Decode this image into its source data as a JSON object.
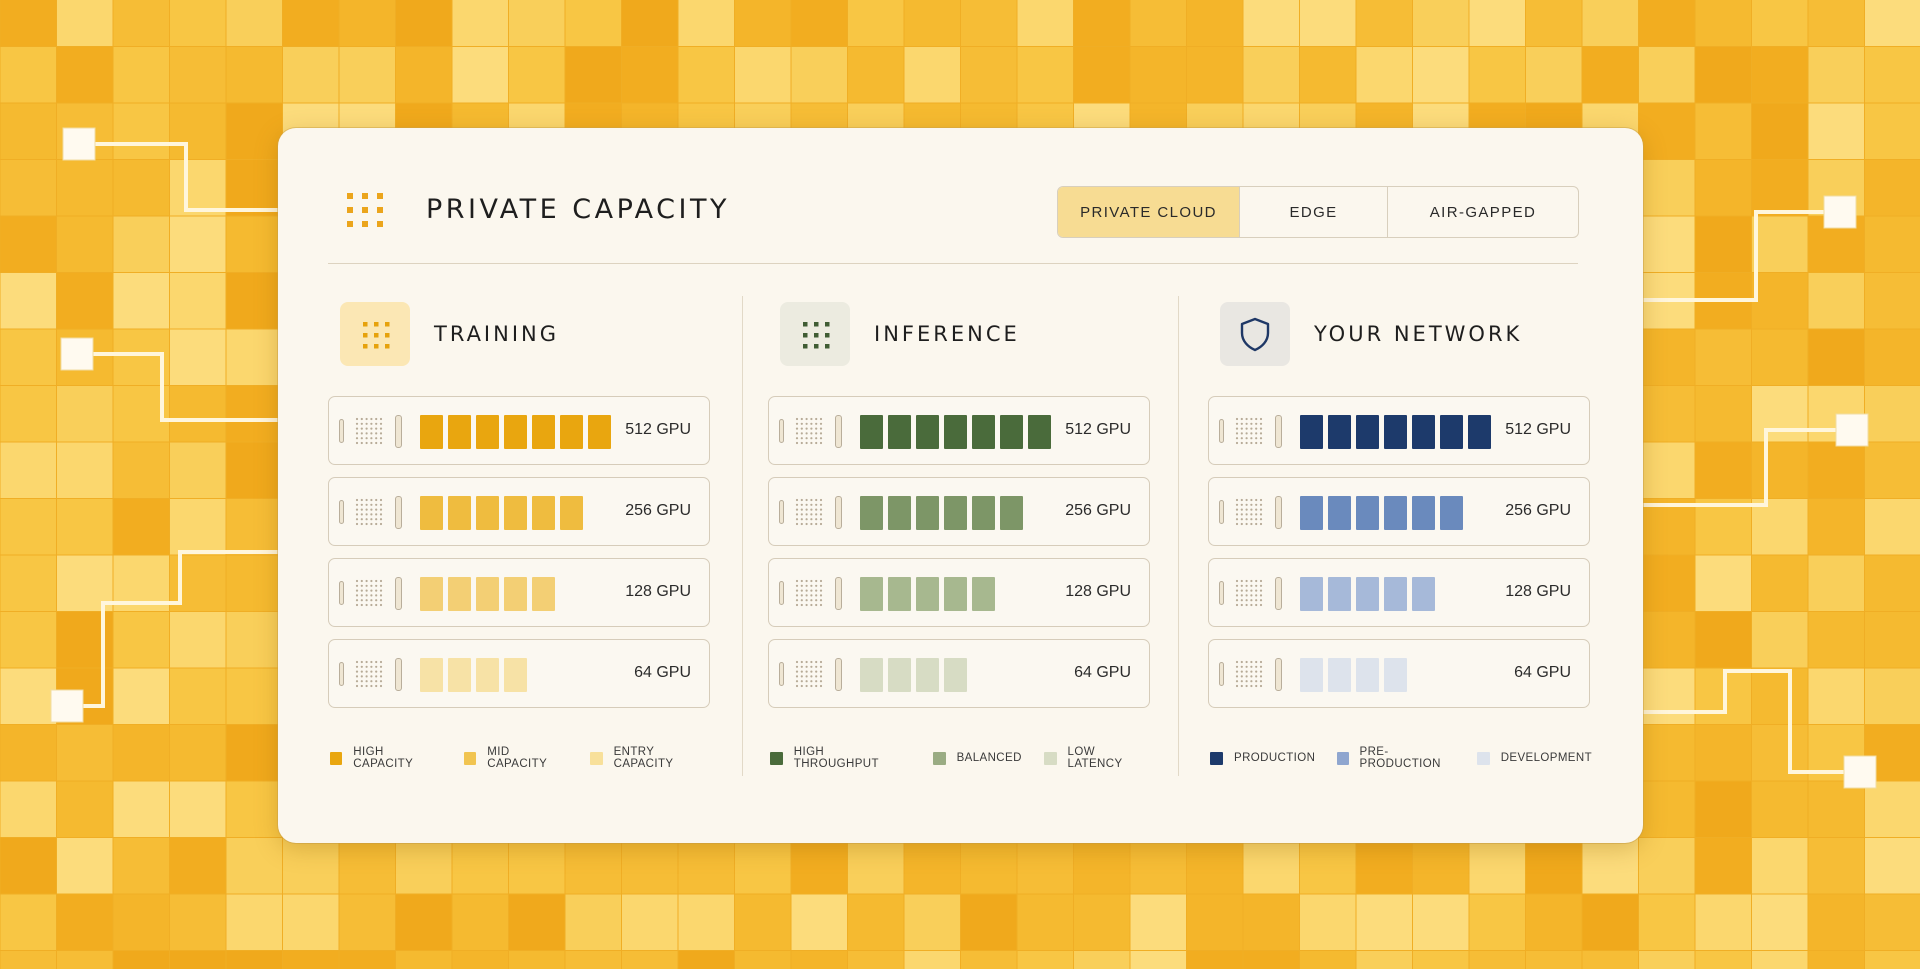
{
  "header": {
    "title": "PRIVATE CAPACITY",
    "logo_icon": "dot-grid-icon",
    "tabs": [
      {
        "label": "PRIVATE CLOUD",
        "active": true
      },
      {
        "label": "EDGE",
        "active": false
      },
      {
        "label": "AIR-GAPPED",
        "active": false
      }
    ]
  },
  "columns": [
    {
      "title": "TRAINING",
      "icon": "dot-grid-icon",
      "icon_bg": "#fbe7b4",
      "icon_color": "#e6a20e",
      "tiers": [
        {
          "label": "512 GPU",
          "units": 7,
          "color": "#e9a60f"
        },
        {
          "label": "256 GPU",
          "units": 6,
          "color": "#efbc3f"
        },
        {
          "label": "128 GPU",
          "units": 5,
          "color": "#f3cf74"
        },
        {
          "label": "64 GPU",
          "units": 4,
          "color": "#f7e2a6"
        }
      ],
      "legend": [
        {
          "label": "HIGH CAPACITY",
          "color": "#e9a60f"
        },
        {
          "label": "MID CAPACITY",
          "color": "#f1c450"
        },
        {
          "label": "ENTRY CAPACITY",
          "color": "#f8e09a"
        }
      ]
    },
    {
      "title": "INFERENCE",
      "icon": "dot-grid-icon",
      "icon_bg": "#ecebe0",
      "icon_color": "#3f5c33",
      "tiers": [
        {
          "label": "512 GPU",
          "units": 7,
          "color": "#4a6b3b"
        },
        {
          "label": "256 GPU",
          "units": 6,
          "color": "#7d9667"
        },
        {
          "label": "128 GPU",
          "units": 5,
          "color": "#a7b88f"
        },
        {
          "label": "64 GPU",
          "units": 4,
          "color": "#d7dcc4"
        }
      ],
      "legend": [
        {
          "label": "HIGH THROUGHPUT",
          "color": "#4a6b3b"
        },
        {
          "label": "BALANCED",
          "color": "#9aac83"
        },
        {
          "label": "LOW LATENCY",
          "color": "#d7dcc4"
        }
      ]
    },
    {
      "title": "YOUR NETWORK",
      "icon": "shield-icon",
      "icon_bg": "#e9e7e2",
      "icon_color": "#1f3866",
      "tiers": [
        {
          "label": "512 GPU",
          "units": 7,
          "color": "#1d3a6b"
        },
        {
          "label": "256 GPU",
          "units": 6,
          "color": "#6a8abd"
        },
        {
          "label": "128 GPU",
          "units": 5,
          "color": "#a6b9d9"
        },
        {
          "label": "64 GPU",
          "units": 4,
          "color": "#dde3ec"
        }
      ],
      "legend": [
        {
          "label": "PRODUCTION",
          "color": "#1d3a6b"
        },
        {
          "label": "PRE-PRODUCTION",
          "color": "#8fa6cf"
        },
        {
          "label": "DEVELOPMENT",
          "color": "#dde3ec"
        }
      ]
    }
  ]
}
